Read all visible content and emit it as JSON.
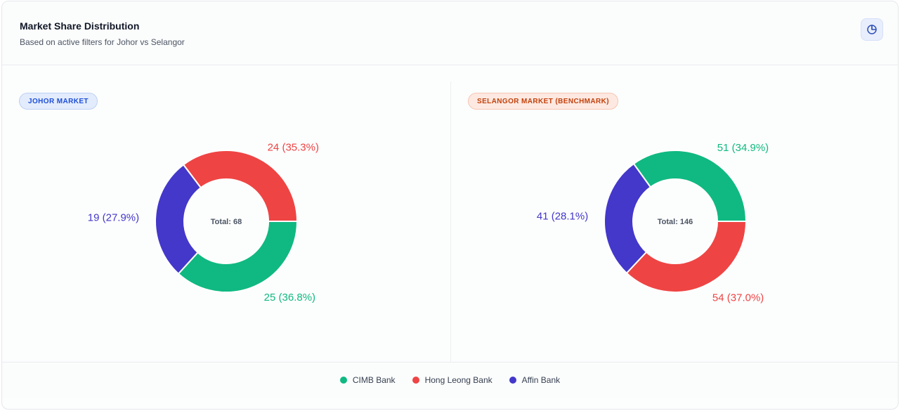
{
  "header": {
    "title": "Market Share Distribution",
    "subtitle": "Based on active filters for Johor vs Selangor",
    "chart_type_icon": "pie-chart-icon"
  },
  "colors": {
    "cimb": "#10b981",
    "hong_leong": "#ef4444",
    "affin": "#4338ca"
  },
  "legend": [
    {
      "label": "CIMB Bank",
      "color": "#10b981"
    },
    {
      "label": "Hong Leong Bank",
      "color": "#ef4444"
    },
    {
      "label": "Affin Bank",
      "color": "#4338ca"
    }
  ],
  "chart_data": [
    {
      "type": "pie",
      "title": "JOHOR MARKET",
      "center_label": "Total: 68",
      "categories": [
        "CIMB Bank",
        "Affin Bank",
        "Hong Leong Bank"
      ],
      "values": [
        25,
        19,
        24
      ],
      "labels": [
        "25 (36.8%)",
        "19 (27.9%)",
        "24 (35.3%)"
      ],
      "colors": [
        "#10b981",
        "#4338ca",
        "#ef4444"
      ]
    },
    {
      "type": "pie",
      "title": "SELANGOR MARKET (BENCHMARK)",
      "center_label": "Total: 146",
      "categories": [
        "Hong Leong Bank",
        "Affin Bank",
        "CIMB Bank"
      ],
      "values": [
        54,
        41,
        51
      ],
      "labels": [
        "54 (37.0%)",
        "41 (28.1%)",
        "51 (34.9%)"
      ],
      "colors": [
        "#ef4444",
        "#4338ca",
        "#10b981"
      ]
    }
  ]
}
